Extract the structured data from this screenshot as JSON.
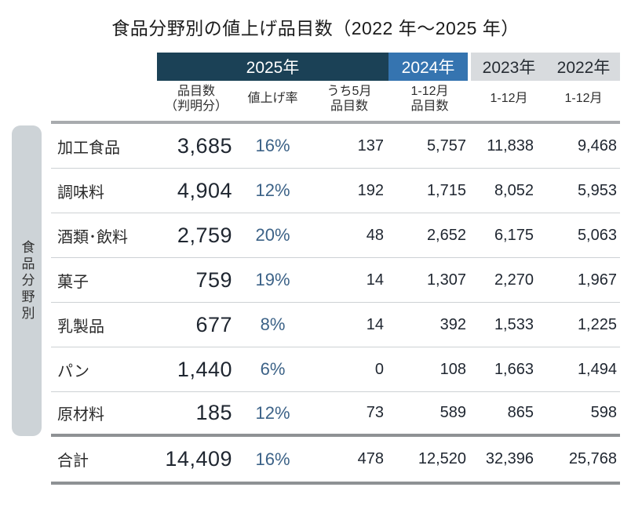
{
  "title": "食品分野別の値上げ品目数（2022 年～2025 年）",
  "side_label": "食品分野別",
  "colors": {
    "band_2025": "#1b4156",
    "band_2024": "#3574b0",
    "band_2023_2022": "#d8dbde",
    "side_bar": "#cdd3d7",
    "percent_text": "#3c6287",
    "number_text": "#1f2630"
  },
  "header": {
    "year_2025": "2025年",
    "year_2024": "2024年",
    "year_2023": "2023年",
    "year_2022": "2022年"
  },
  "table": {
    "columns": [
      {
        "line1": "品目数",
        "line2": "（判明分）"
      },
      {
        "line1": "値上げ率",
        "line2": ""
      },
      {
        "line1": "うち5月",
        "line2": "品目数"
      },
      {
        "line1": "1-12月",
        "line2": "品目数"
      },
      {
        "line1": "1-12月",
        "line2": ""
      },
      {
        "line1": "1-12月",
        "line2": ""
      }
    ],
    "rows": [
      {
        "category": "加工食品",
        "count2025": "3,685",
        "rate": "16%",
        "may": "137",
        "y2024": "5,757",
        "y2023": "11,838",
        "y2022": "9,468"
      },
      {
        "category": "調味料",
        "count2025": "4,904",
        "rate": "12%",
        "may": "192",
        "y2024": "1,715",
        "y2023": "8,052",
        "y2022": "5,953"
      },
      {
        "category": "酒類･飲料",
        "count2025": "2,759",
        "rate": "20%",
        "may": "48",
        "y2024": "2,652",
        "y2023": "6,175",
        "y2022": "5,063"
      },
      {
        "category": "菓子",
        "count2025": "759",
        "rate": "19%",
        "may": "14",
        "y2024": "1,307",
        "y2023": "2,270",
        "y2022": "1,967"
      },
      {
        "category": "乳製品",
        "count2025": "677",
        "rate": "8%",
        "may": "14",
        "y2024": "392",
        "y2023": "1,533",
        "y2022": "1,225"
      },
      {
        "category": "パン",
        "count2025": "1,440",
        "rate": "6%",
        "may": "0",
        "y2024": "108",
        "y2023": "1,663",
        "y2022": "1,494"
      },
      {
        "category": "原材料",
        "count2025": "185",
        "rate": "12%",
        "may": "73",
        "y2024": "589",
        "y2023": "865",
        "y2022": "598"
      }
    ],
    "total": {
      "category": "合計",
      "count2025": "14,409",
      "rate": "16%",
      "may": "478",
      "y2024": "12,520",
      "y2023": "32,396",
      "y2022": "25,768"
    }
  },
  "chart_data": {
    "type": "table",
    "title": "食品分野別の値上げ品目数（2022年～2025年）",
    "row_axis_label": "食品分野別",
    "column_groups": [
      "2025年",
      "2025年",
      "2025年",
      "2024年",
      "2023年",
      "2022年"
    ],
    "columns": [
      "品目数（判明分）",
      "値上げ率",
      "うち5月品目数",
      "1-12月品目数",
      "1-12月",
      "1-12月"
    ],
    "rows": [
      {
        "category": "加工食品",
        "values": [
          3685,
          "16%",
          137,
          5757,
          11838,
          9468
        ]
      },
      {
        "category": "調味料",
        "values": [
          4904,
          "12%",
          192,
          1715,
          8052,
          5953
        ]
      },
      {
        "category": "酒類･飲料",
        "values": [
          2759,
          "20%",
          48,
          2652,
          6175,
          5063
        ]
      },
      {
        "category": "菓子",
        "values": [
          759,
          "19%",
          14,
          1307,
          2270,
          1967
        ]
      },
      {
        "category": "乳製品",
        "values": [
          677,
          "8%",
          14,
          392,
          1533,
          1225
        ]
      },
      {
        "category": "パン",
        "values": [
          1440,
          "6%",
          0,
          108,
          1663,
          1494
        ]
      },
      {
        "category": "原材料",
        "values": [
          185,
          "12%",
          73,
          589,
          865,
          598
        ]
      }
    ],
    "total": {
      "category": "合計",
      "values": [
        14409,
        "16%",
        478,
        12520,
        32396,
        25768
      ]
    }
  }
}
